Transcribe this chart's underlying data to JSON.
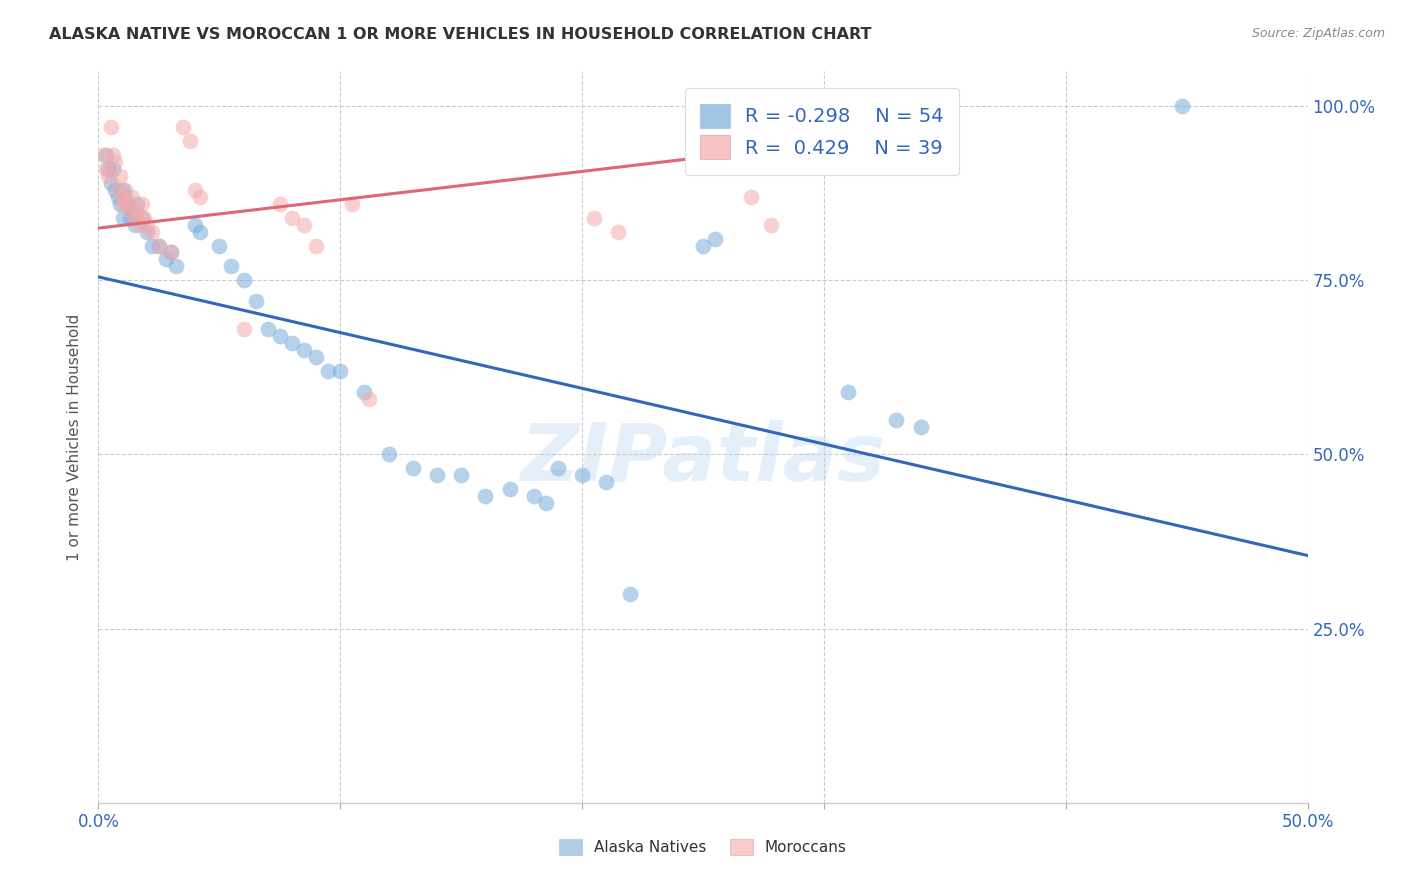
{
  "title": "ALASKA NATIVE VS MOROCCAN 1 OR MORE VEHICLES IN HOUSEHOLD CORRELATION CHART",
  "source": "Source: ZipAtlas.com",
  "ylabel": "1 or more Vehicles in Household",
  "xlim": [
    0.0,
    0.5
  ],
  "ylim": [
    0.0,
    1.05
  ],
  "xticks": [
    0.0,
    0.1,
    0.2,
    0.3,
    0.4,
    0.5
  ],
  "yticks": [
    0.0,
    0.25,
    0.5,
    0.75,
    1.0
  ],
  "grid_color": "#cccccc",
  "background_color": "#ffffff",
  "watermark": "ZIPatlas",
  "legend_R_blue": "-0.298",
  "legend_N_blue": "54",
  "legend_R_pink": "0.429",
  "legend_N_pink": "39",
  "blue_color": "#7aaddb",
  "pink_color": "#f4aaaa",
  "blue_line_color": "#3366bb",
  "pink_line_color": "#dd6677",
  "blue_scatter": [
    [
      0.003,
      0.93
    ],
    [
      0.004,
      0.91
    ],
    [
      0.005,
      0.89
    ],
    [
      0.006,
      0.91
    ],
    [
      0.007,
      0.88
    ],
    [
      0.008,
      0.87
    ],
    [
      0.009,
      0.86
    ],
    [
      0.01,
      0.88
    ],
    [
      0.01,
      0.84
    ],
    [
      0.011,
      0.87
    ],
    [
      0.012,
      0.86
    ],
    [
      0.013,
      0.84
    ],
    [
      0.014,
      0.85
    ],
    [
      0.015,
      0.83
    ],
    [
      0.016,
      0.86
    ],
    [
      0.018,
      0.84
    ],
    [
      0.02,
      0.82
    ],
    [
      0.022,
      0.8
    ],
    [
      0.025,
      0.8
    ],
    [
      0.028,
      0.78
    ],
    [
      0.03,
      0.79
    ],
    [
      0.032,
      0.77
    ],
    [
      0.04,
      0.83
    ],
    [
      0.042,
      0.82
    ],
    [
      0.05,
      0.8
    ],
    [
      0.055,
      0.77
    ],
    [
      0.06,
      0.75
    ],
    [
      0.065,
      0.72
    ],
    [
      0.07,
      0.68
    ],
    [
      0.075,
      0.67
    ],
    [
      0.08,
      0.66
    ],
    [
      0.085,
      0.65
    ],
    [
      0.09,
      0.64
    ],
    [
      0.095,
      0.62
    ],
    [
      0.1,
      0.62
    ],
    [
      0.11,
      0.59
    ],
    [
      0.12,
      0.5
    ],
    [
      0.13,
      0.48
    ],
    [
      0.14,
      0.47
    ],
    [
      0.15,
      0.47
    ],
    [
      0.16,
      0.44
    ],
    [
      0.17,
      0.45
    ],
    [
      0.18,
      0.44
    ],
    [
      0.185,
      0.43
    ],
    [
      0.19,
      0.48
    ],
    [
      0.2,
      0.47
    ],
    [
      0.21,
      0.46
    ],
    [
      0.22,
      0.3
    ],
    [
      0.25,
      0.8
    ],
    [
      0.255,
      0.81
    ],
    [
      0.31,
      0.59
    ],
    [
      0.33,
      0.55
    ],
    [
      0.34,
      0.54
    ],
    [
      0.448,
      1.0
    ]
  ],
  "pink_scatter": [
    [
      0.002,
      0.93
    ],
    [
      0.003,
      0.91
    ],
    [
      0.004,
      0.9
    ],
    [
      0.005,
      0.97
    ],
    [
      0.006,
      0.93
    ],
    [
      0.007,
      0.92
    ],
    [
      0.008,
      0.88
    ],
    [
      0.009,
      0.9
    ],
    [
      0.01,
      0.87
    ],
    [
      0.01,
      0.86
    ],
    [
      0.011,
      0.88
    ],
    [
      0.012,
      0.86
    ],
    [
      0.013,
      0.85
    ],
    [
      0.014,
      0.87
    ],
    [
      0.015,
      0.84
    ],
    [
      0.016,
      0.85
    ],
    [
      0.017,
      0.83
    ],
    [
      0.018,
      0.86
    ],
    [
      0.019,
      0.84
    ],
    [
      0.02,
      0.83
    ],
    [
      0.022,
      0.82
    ],
    [
      0.025,
      0.8
    ],
    [
      0.03,
      0.79
    ],
    [
      0.035,
      0.97
    ],
    [
      0.038,
      0.95
    ],
    [
      0.04,
      0.88
    ],
    [
      0.042,
      0.87
    ],
    [
      0.06,
      0.68
    ],
    [
      0.075,
      0.86
    ],
    [
      0.08,
      0.84
    ],
    [
      0.085,
      0.83
    ],
    [
      0.09,
      0.8
    ],
    [
      0.105,
      0.86
    ],
    [
      0.112,
      0.58
    ],
    [
      0.205,
      0.84
    ],
    [
      0.215,
      0.82
    ],
    [
      0.27,
      0.87
    ],
    [
      0.278,
      0.83
    ],
    [
      0.295,
      1.0
    ]
  ],
  "blue_line_x": [
    0.0,
    0.5
  ],
  "blue_line_y": [
    0.755,
    0.355
  ],
  "pink_line_x": [
    0.0,
    0.295
  ],
  "pink_line_y": [
    0.825,
    0.945
  ]
}
